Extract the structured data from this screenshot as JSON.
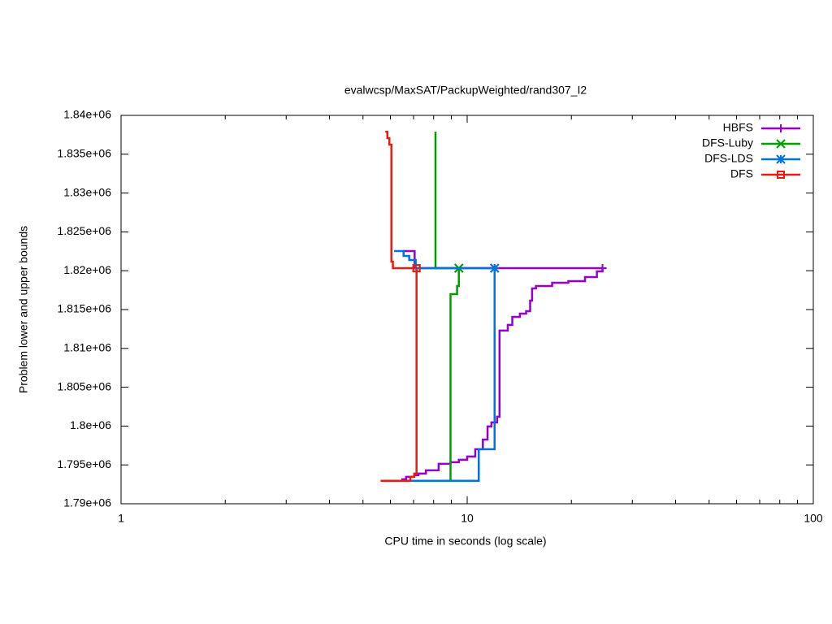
{
  "chart_data": {
    "type": "line",
    "title": "evalwcsp/MaxSAT/PackupWeighted/rand307_I2",
    "x_label": "CPU time in seconds (log scale)",
    "y_label": "Problem lower and upper bounds",
    "xlog": true,
    "step": true,
    "legend": "top-right",
    "xlim": [
      1,
      100
    ],
    "xticks": [
      1,
      10,
      100
    ],
    "ylim": [
      1790000,
      1840000
    ],
    "yticks": [
      {
        "value": 1790000,
        "label": "1.79e+06"
      },
      {
        "value": 1795000,
        "label": "1.795e+06"
      },
      {
        "value": 1800000,
        "label": "1.8e+06"
      },
      {
        "value": 1805000,
        "label": "1.805e+06"
      },
      {
        "value": 1810000,
        "label": "1.81e+06"
      },
      {
        "value": 1815000,
        "label": "1.815e+06"
      },
      {
        "value": 1820000,
        "label": "1.82e+06"
      },
      {
        "value": 1825000,
        "label": "1.825e+06"
      },
      {
        "value": 1830000,
        "label": "1.83e+06"
      },
      {
        "value": 1835000,
        "label": "1.835e+06"
      },
      {
        "value": 1840000,
        "label": "1.84e+06"
      }
    ],
    "series": [
      {
        "name": "HBFS",
        "color": "#9400d3",
        "marker": "plus",
        "x": [
          6.5,
          7.05,
          24.6,
          null,
          6.45,
          6.66,
          7.03,
          7.23,
          7.6,
          8.27,
          8.95,
          9.46,
          10,
          10.55,
          11.1,
          11.45,
          11.75,
          12.2,
          12.4,
          13.1,
          13.5,
          14.2,
          14.8,
          15.2,
          15.4,
          15.8,
          17.6,
          19.6,
          21.9,
          23.7,
          24.6
        ],
        "values": [
          1822530,
          1820330,
          1820330,
          null,
          1793150,
          1793460,
          1793670,
          1793880,
          1794300,
          1795140,
          1795350,
          1795660,
          1796080,
          1797020,
          1798270,
          1799950,
          1800470,
          1801200,
          1812290,
          1813020,
          1814060,
          1814480,
          1814790,
          1816150,
          1817720,
          1818030,
          1818450,
          1818660,
          1819180,
          1819910,
          1820330
        ]
      },
      {
        "name": "DFS-Luby",
        "color": "#009e00",
        "marker": "cross",
        "x": [
          8.1,
          8.1,
          9.46,
          null,
          6.85,
          8.95,
          9.35,
          9.46
        ],
        "values": [
          1837900,
          1820330,
          1820330,
          null,
          1792950,
          1816990,
          1818030,
          1820330
        ]
      },
      {
        "name": "DFS-LDS",
        "color": "#0072e6",
        "marker": "star",
        "x": [
          6.15,
          6.55,
          6.8,
          7.1,
          12.0,
          null,
          6.85,
          10.8,
          12.0
        ],
        "values": [
          1822530,
          1821900,
          1821380,
          1820330,
          1820330,
          null,
          1792950,
          1797020,
          1820330
        ]
      },
      {
        "name": "DFS",
        "color": "#e51e10",
        "marker": "square",
        "x": [
          5.8,
          5.88,
          5.96,
          6.04,
          6.1,
          7.14,
          null,
          5.62,
          6.85,
          7.03,
          7.14
        ],
        "values": [
          1837900,
          1837070,
          1836230,
          1821170,
          1820330,
          1820330,
          null,
          1792950,
          1793460,
          1793880,
          1820330
        ]
      }
    ]
  }
}
